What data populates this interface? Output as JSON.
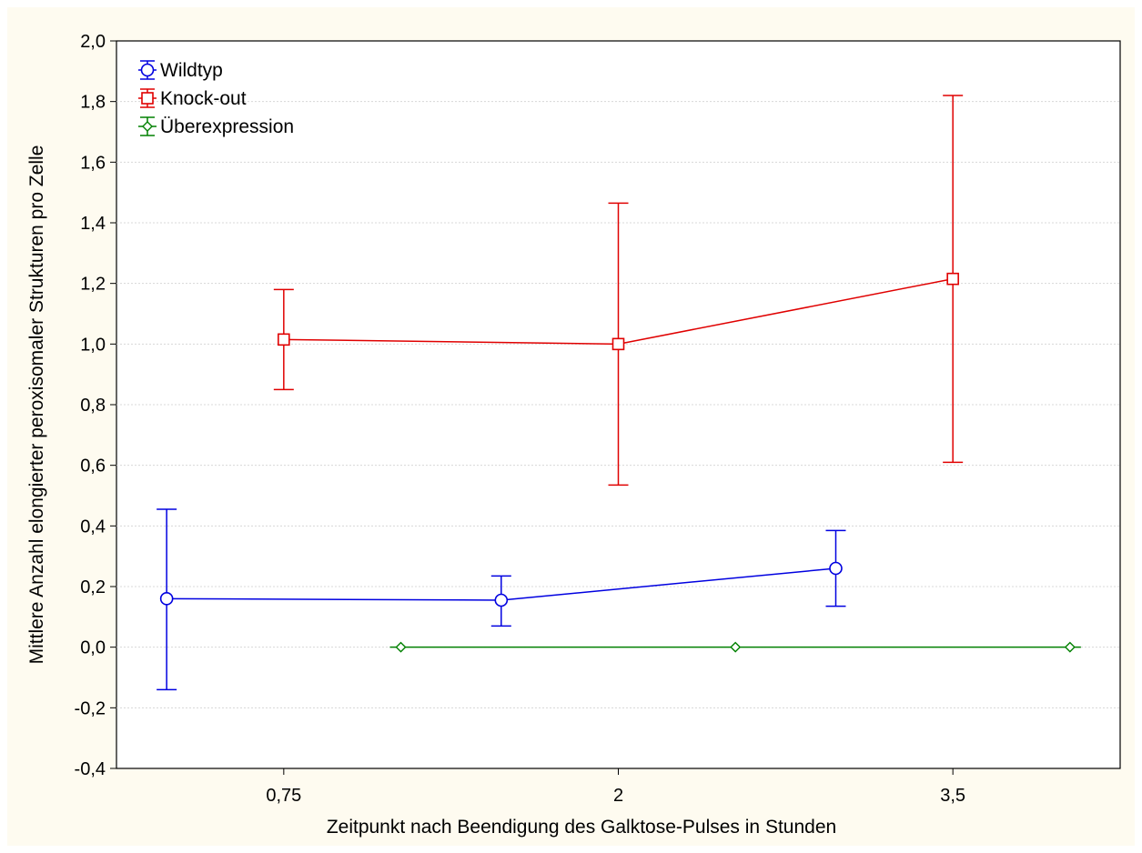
{
  "chart_data": {
    "type": "line",
    "title": "",
    "xlabel": "Zeitpunkt nach Beendigung des Galktose-Pulses in Stunden",
    "ylabel": "Mittlere Anzahl elongierter peroxisomaler Strukturen pro Zelle",
    "categories": [
      "0,75",
      "2",
      "3,5"
    ],
    "ylim": [
      -0.4,
      2.0
    ],
    "yticks": [
      "-0,4",
      "-0,2",
      "0,0",
      "0,2",
      "0,4",
      "0,6",
      "0,8",
      "1,0",
      "1,2",
      "1,4",
      "1,6",
      "1,8",
      "2,0"
    ],
    "grid": true,
    "legend_position": "top-left",
    "series": [
      {
        "name": "Wildtyp",
        "color": "#0000e0",
        "marker": "circle",
        "offset": -0.35,
        "values": [
          0.16,
          0.155,
          0.26
        ],
        "lower": [
          -0.14,
          0.07,
          0.135
        ],
        "upper": [
          0.455,
          0.235,
          0.385
        ]
      },
      {
        "name": "Knock-out",
        "color": "#e00000",
        "marker": "square",
        "offset": 0.0,
        "values": [
          1.015,
          1.0,
          1.215
        ],
        "lower": [
          0.85,
          0.535,
          0.61
        ],
        "upper": [
          1.18,
          1.465,
          1.82
        ]
      },
      {
        "name": "Überexpression",
        "color": "#008000",
        "marker": "diamond",
        "offset": 0.35,
        "values": [
          0.0,
          0.0,
          0.0
        ],
        "lower": [
          0.0,
          0.0,
          0.0
        ],
        "upper": [
          0.0,
          0.0,
          0.0
        ]
      }
    ]
  }
}
